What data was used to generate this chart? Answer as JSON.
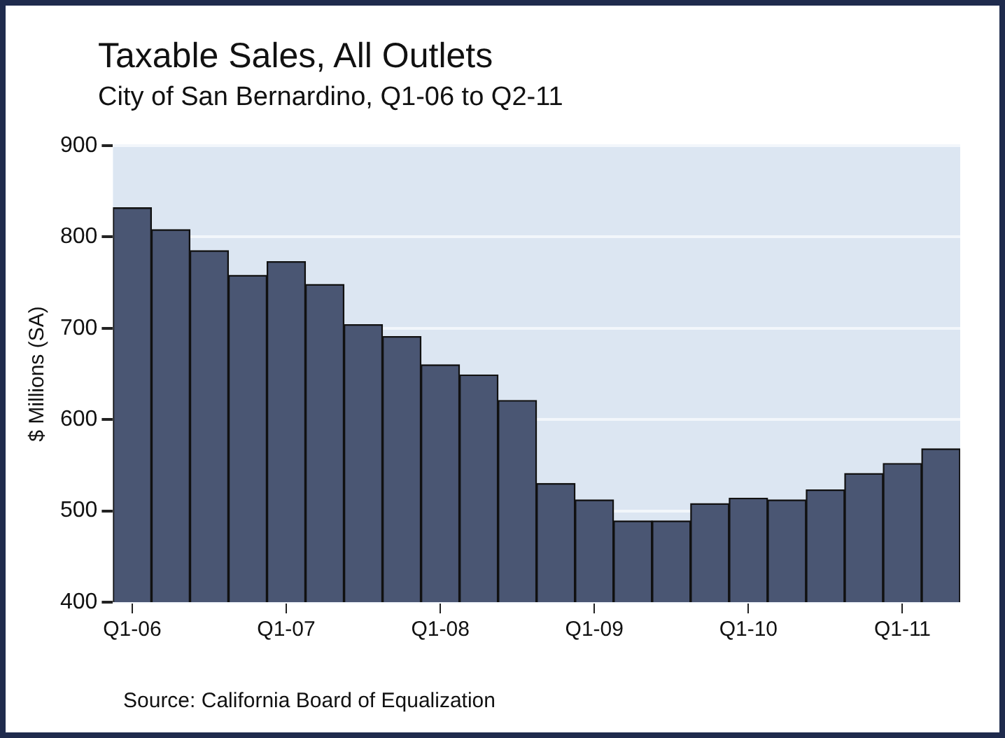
{
  "chart_data": {
    "type": "bar",
    "title": "Taxable Sales, All Outlets",
    "subtitle": "City of San Bernardino, Q1-06 to Q2-11",
    "ylabel": "$ Millions (SA)",
    "categories": [
      "Q1-06",
      null,
      null,
      null,
      "Q1-07",
      null,
      null,
      null,
      "Q1-08",
      null,
      null,
      null,
      "Q1-09",
      null,
      null,
      null,
      "Q1-10",
      null,
      null,
      null,
      "Q1-11",
      null
    ],
    "values": [
      832,
      808,
      785,
      758,
      773,
      748,
      704,
      691,
      660,
      649,
      621,
      530,
      512,
      489,
      489,
      508,
      514,
      512,
      523,
      541,
      552,
      568
    ],
    "color": "#4a5673",
    "ylim": [
      400,
      900
    ],
    "yticks": [
      400,
      500,
      600,
      700,
      800,
      900
    ],
    "grid": "y",
    "annotations": [
      "Source: California Board of Equalization"
    ]
  }
}
